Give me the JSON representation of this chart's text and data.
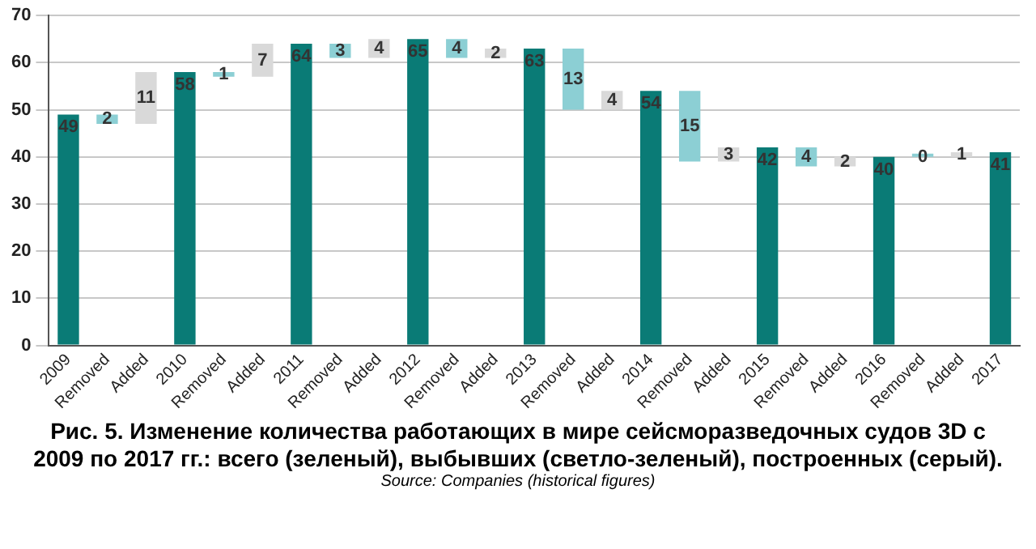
{
  "chart_data": {
    "type": "bar",
    "title": "Рис. 5. Изменение количества работающих в мире сейсморазведочных судов 3D с 2009 по 2017 гг.: всего (зеленый), выбывших (светло-зеленый), построенных (серый).",
    "annotations": [
      "Source: Companies (historical figures)"
    ],
    "categories": [
      "2009",
      "Removed",
      "Added",
      "2010",
      "Removed",
      "Added",
      "2011",
      "Removed",
      "Added",
      "2012",
      "Removed",
      "Added",
      "2013",
      "Removed",
      "Added",
      "2014",
      "Removed",
      "Added",
      "2015",
      "Removed",
      "Added",
      "2016",
      "Removed",
      "Added",
      "2017"
    ],
    "values": [
      49,
      2,
      11,
      58,
      1,
      7,
      64,
      3,
      4,
      65,
      4,
      2,
      63,
      13,
      4,
      54,
      15,
      3,
      42,
      4,
      2,
      40,
      0,
      1,
      41
    ],
    "base": [
      0,
      47,
      47,
      0,
      57,
      57,
      0,
      61,
      61,
      0,
      61,
      61,
      0,
      50,
      50,
      0,
      39,
      39,
      0,
      38,
      38,
      0,
      40,
      40,
      0
    ],
    "colors": [
      "#0a7b76",
      "#8ccfd4",
      "#d9d9d9",
      "#0a7b76",
      "#8ccfd4",
      "#d9d9d9",
      "#0a7b76",
      "#8ccfd4",
      "#d9d9d9",
      "#0a7b76",
      "#8ccfd4",
      "#d9d9d9",
      "#0a7b76",
      "#8ccfd4",
      "#d9d9d9",
      "#0a7b76",
      "#8ccfd4",
      "#d9d9d9",
      "#0a7b76",
      "#8ccfd4",
      "#d9d9d9",
      "#0a7b76",
      "#8ccfd4",
      "#d9d9d9",
      "#0a7b76"
    ],
    "ylim": [
      0,
      70
    ],
    "yticks": [
      0,
      10,
      20,
      30,
      40,
      50,
      60,
      70
    ],
    "grid": "y",
    "data_labels": true
  }
}
